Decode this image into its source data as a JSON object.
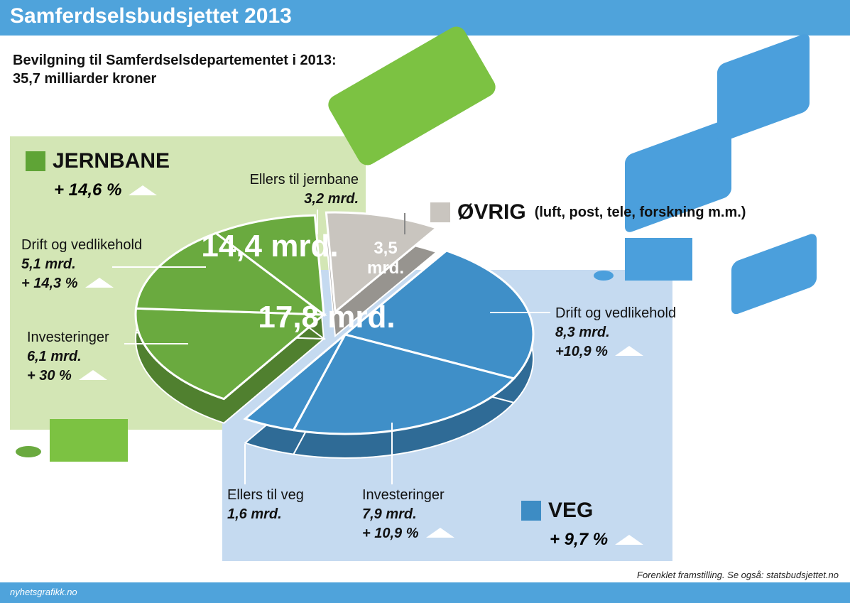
{
  "header": {
    "title": "Samferdselsbudsjettet 2013"
  },
  "chart_data": {
    "type": "pie",
    "subtitle": "Bevilgning til Samferdselsdepartementet i 2013: 35,7 milliarder kroner",
    "categories": [
      "Ellers til jernbane",
      "ØVRIG",
      "Drift og vedlikehold",
      "Investeringer",
      "Ellers til veg",
      "Investeringer",
      "Drift og vedlikehold"
    ],
    "values": [
      3.2,
      3.5,
      8.3,
      7.9,
      1.6,
      6.1,
      5.1
    ],
    "value_labels": [
      "3,2 mrd.",
      "3,5 mrd.",
      "8,3 mrd.",
      "7,9 mrd.",
      "1,6 mrd.",
      "6,1 mrd.",
      "5,1 mrd."
    ],
    "changes": [
      null,
      null,
      "+10,9 %",
      "+ 10,9 %",
      null,
      "+ 30 %",
      "+ 14,3 %"
    ],
    "colors": [
      "#6aaa3f",
      "#c9c5bf",
      "#3f8fc8",
      "#3f8fc8",
      "#3f8fc8",
      "#6aaa3f",
      "#6aaa3f"
    ],
    "ovrig_note": "(luft, post, tele, forskning m.m.)",
    "groups": [
      {
        "name": "JERNBANE",
        "change": "+ 14,6 %",
        "total": "14,4 mrd.",
        "color": "#5fa436"
      },
      {
        "name": "VEG",
        "change": "+ 9,7 %",
        "total": "17,8 mrd.",
        "color": "#3d8cc4"
      }
    ]
  },
  "footer": {
    "source": "Forenklet framstilling. Se også: statsbudsjettet.no",
    "credit": "nyhetsgrafikk.no"
  }
}
